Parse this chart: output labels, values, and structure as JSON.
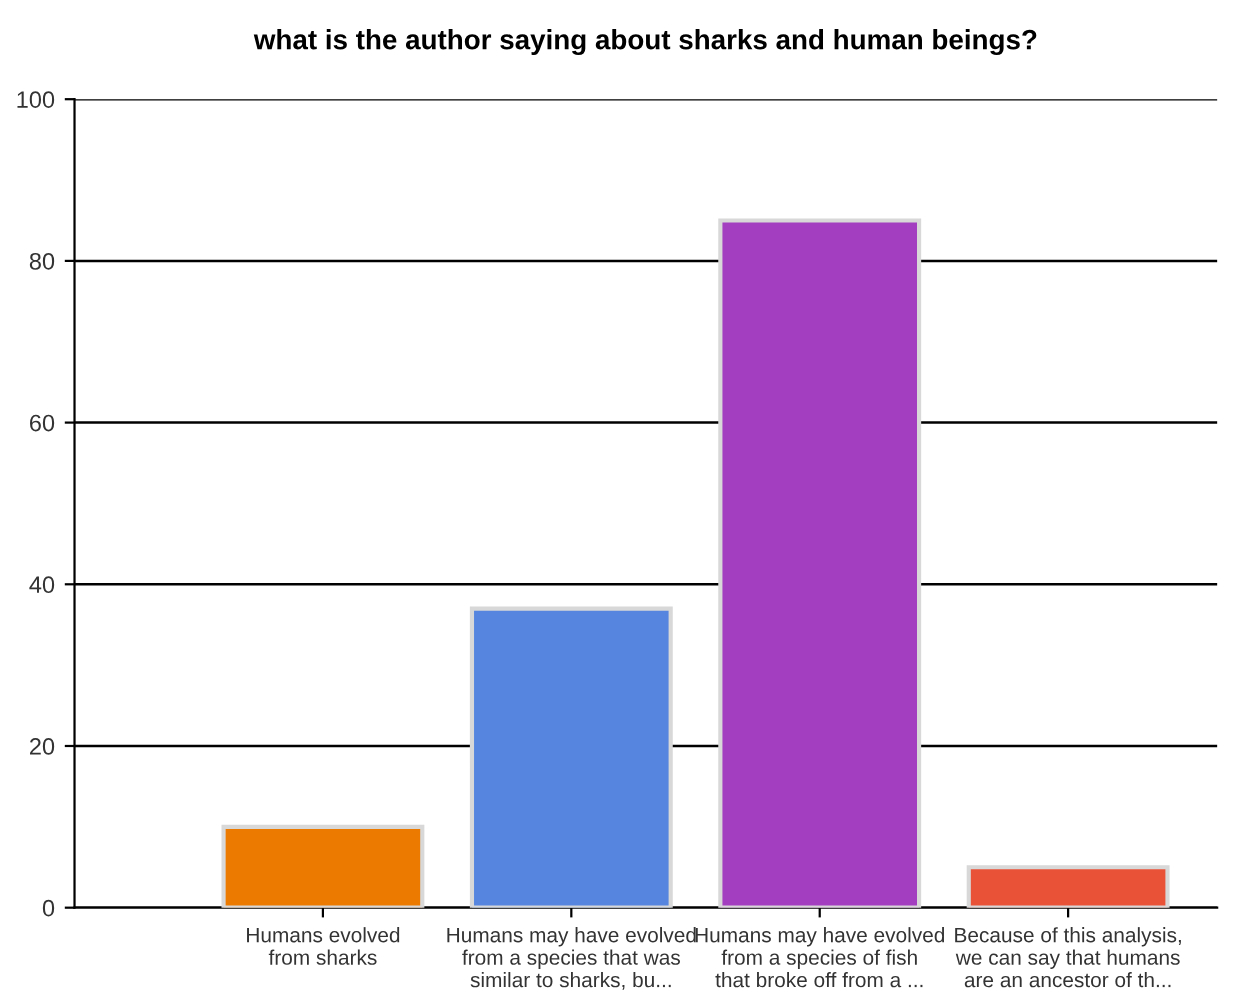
{
  "chart_data": {
    "type": "bar",
    "title": "what is the author saying about sharks and human beings?",
    "categories": [
      "Humans evolved\nfrom sharks",
      "Humans may have evolved\nfrom a species that was\nsimilar to sharks, bu...",
      "Humans may have evolved\nfrom a species of fish\nthat broke off from a ...",
      "Because of this analysis,\nwe can say that humans\nare an ancestor of th..."
    ],
    "values": [
      10,
      37,
      85,
      5
    ],
    "colors": [
      "#ec7a00",
      "#5585de",
      "#a23ebf",
      "#ea5238"
    ],
    "ylim": [
      0,
      100
    ],
    "yticks": [
      0,
      20,
      40,
      60,
      80,
      100
    ],
    "grid": "y",
    "legend": false
  }
}
